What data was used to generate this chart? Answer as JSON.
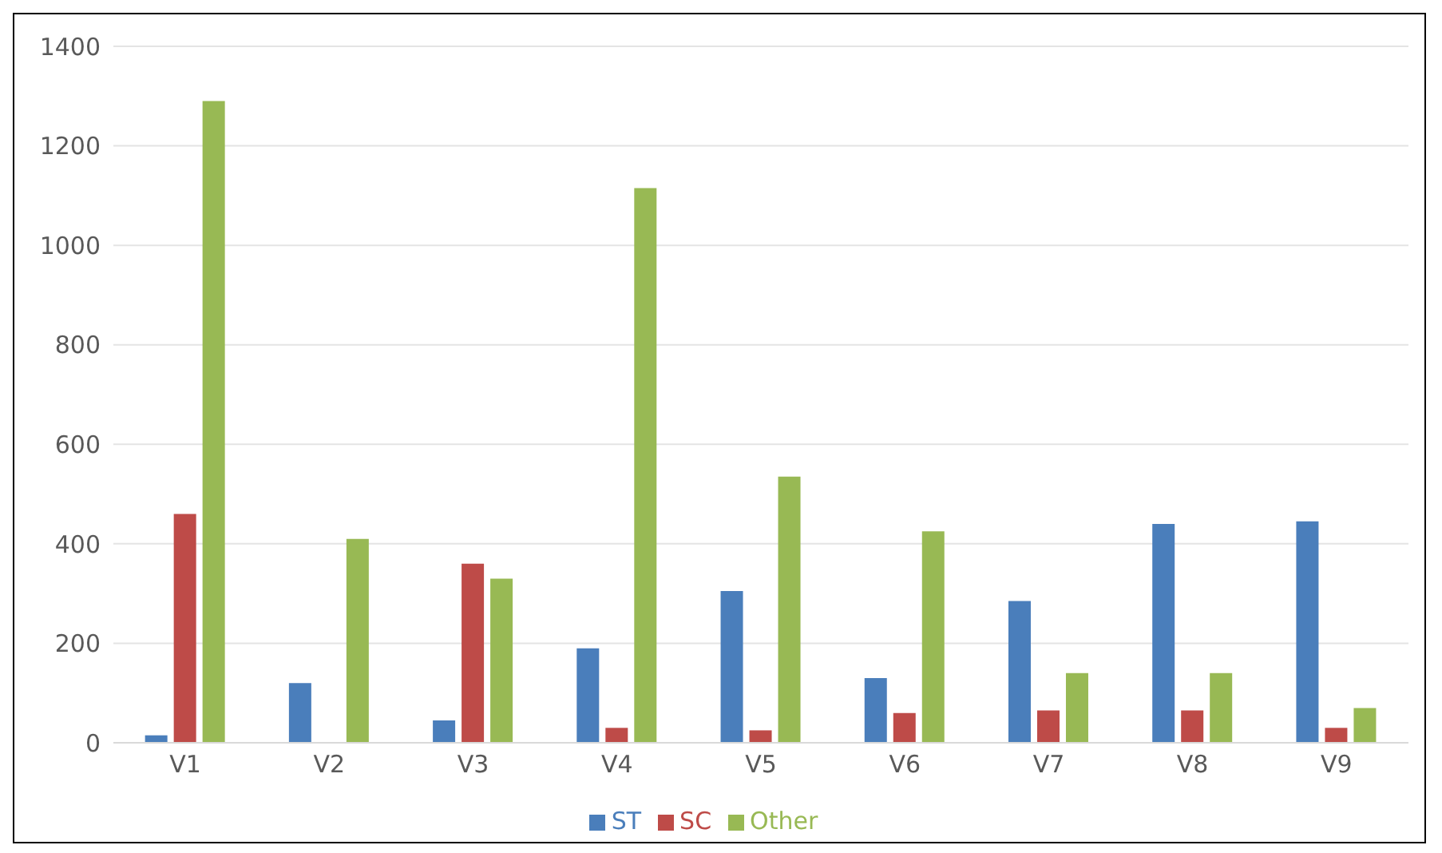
{
  "chart_data": {
    "type": "bar",
    "categories": [
      "V1",
      "V2",
      "V3",
      "V4",
      "V5",
      "V6",
      "V7",
      "V8",
      "V9"
    ],
    "series": [
      {
        "name": "ST",
        "color": "#4a7ebb",
        "values": [
          15,
          120,
          45,
          190,
          305,
          130,
          285,
          440,
          445
        ]
      },
      {
        "name": "SC",
        "color": "#be4b48",
        "values": [
          460,
          0,
          360,
          30,
          25,
          60,
          65,
          65,
          30
        ]
      },
      {
        "name": "Other",
        "color": "#98b954",
        "values": [
          1290,
          410,
          330,
          1115,
          535,
          425,
          140,
          140,
          70
        ]
      }
    ],
    "ylim": [
      0,
      1400
    ],
    "yticks": [
      0,
      200,
      400,
      600,
      800,
      1000,
      1200,
      1400
    ],
    "grid": "y",
    "legend": "bottom"
  }
}
